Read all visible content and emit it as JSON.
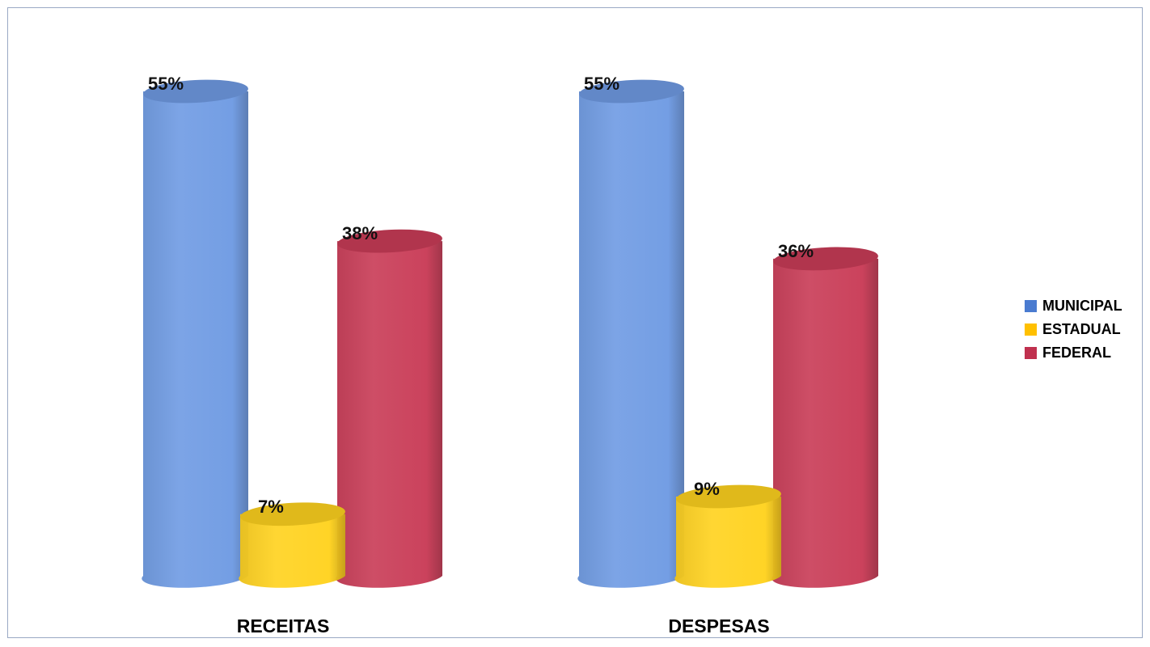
{
  "chart_data": {
    "type": "bar",
    "style": "3d-cylinder",
    "categories": [
      "RECEITAS",
      "DESPESAS"
    ],
    "series": [
      {
        "name": "MUNICIPAL",
        "values": [
          55,
          55
        ],
        "labels": [
          "55%",
          "55%"
        ],
        "color": "#6f9be3"
      },
      {
        "name": "ESTADUAL",
        "values": [
          7,
          9
        ],
        "labels": [
          "7%",
          "9%"
        ],
        "color": "#ffd21f"
      },
      {
        "name": "FEDERAL",
        "values": [
          38,
          36
        ],
        "labels": [
          "38%",
          "36%"
        ],
        "color": "#c93c57"
      }
    ],
    "ylim": [
      0,
      55
    ],
    "grid": false,
    "legend_position": "right"
  }
}
